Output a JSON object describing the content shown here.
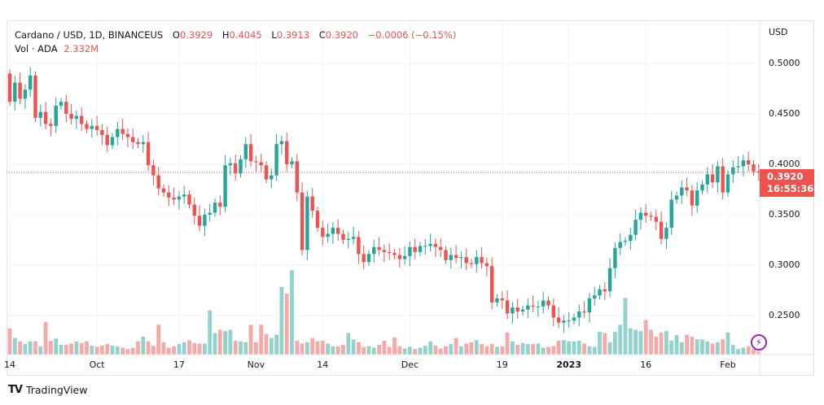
{
  "legend": {
    "symbol": "Cardano / USD, 1D, BINANCEUS",
    "o_label": "O",
    "o": "0.3929",
    "h_label": "H",
    "h": "0.4045",
    "l_label": "L",
    "l": "0.3913",
    "c_label": "C",
    "c": "0.3920",
    "change": "−0.0006 (−0.15%)",
    "vol_label": "Vol · ADA",
    "vol": "2.332M"
  },
  "price_label": {
    "price": "0.3920",
    "countdown": "16:55:36"
  },
  "footer": {
    "brand": "TradingView"
  },
  "colors": {
    "up": "#26a69a",
    "down": "#ef5350",
    "up_vol": "#92d2cc",
    "down_vol": "#f7a9a7",
    "grid": "#f0f3fa"
  },
  "chart_data": {
    "type": "candlestick",
    "title": "Cardano / USD, 1D, BINANCEUS",
    "currency_label": "USD",
    "ylim": [
      0.215,
      0.525
    ],
    "y_ticks": [
      "0.5000",
      "0.4500",
      "0.4000",
      "0.3500",
      "0.3000",
      "0.2500"
    ],
    "y_tick_values": [
      0.5,
      0.45,
      0.4,
      0.35,
      0.3,
      0.25
    ],
    "x_ticks": [
      {
        "label": "14",
        "index": 0
      },
      {
        "label": "Oct",
        "index": 17
      },
      {
        "label": "17",
        "index": 33
      },
      {
        "label": "Nov",
        "index": 48
      },
      {
        "label": "14",
        "index": 61
      },
      {
        "label": "Dec",
        "index": 78
      },
      {
        "label": "19",
        "index": 96
      },
      {
        "label": "2023",
        "index": 109
      },
      {
        "label": "16",
        "index": 124
      },
      {
        "label": "Feb",
        "index": 140
      }
    ],
    "first_open": 0.49,
    "close": [
      0.462,
      0.481,
      0.465,
      0.474,
      0.488,
      0.446,
      0.452,
      0.44,
      0.438,
      0.458,
      0.462,
      0.45,
      0.445,
      0.448,
      0.44,
      0.435,
      0.438,
      0.434,
      0.429,
      0.419,
      0.427,
      0.435,
      0.43,
      0.427,
      0.422,
      0.42,
      0.422,
      0.399,
      0.389,
      0.376,
      0.372,
      0.367,
      0.365,
      0.368,
      0.37,
      0.36,
      0.349,
      0.339,
      0.35,
      0.352,
      0.362,
      0.358,
      0.399,
      0.401,
      0.391,
      0.405,
      0.42,
      0.403,
      0.402,
      0.399,
      0.385,
      0.389,
      0.42,
      0.423,
      0.4,
      0.403,
      0.372,
      0.315,
      0.368,
      0.354,
      0.337,
      0.328,
      0.331,
      0.337,
      0.331,
      0.325,
      0.326,
      0.328,
      0.311,
      0.303,
      0.311,
      0.318,
      0.315,
      0.313,
      0.312,
      0.31,
      0.306,
      0.309,
      0.318,
      0.313,
      0.319,
      0.319,
      0.321,
      0.318,
      0.315,
      0.305,
      0.31,
      0.307,
      0.308,
      0.302,
      0.301,
      0.308,
      0.302,
      0.299,
      0.263,
      0.267,
      0.265,
      0.252,
      0.258,
      0.254,
      0.256,
      0.26,
      0.259,
      0.259,
      0.265,
      0.26,
      0.248,
      0.243,
      0.245,
      0.245,
      0.248,
      0.254,
      0.253,
      0.267,
      0.27,
      0.276,
      0.274,
      0.297,
      0.317,
      0.323,
      0.324,
      0.33,
      0.345,
      0.352,
      0.349,
      0.348,
      0.343,
      0.326,
      0.337,
      0.365,
      0.369,
      0.377,
      0.374,
      0.359,
      0.374,
      0.38,
      0.39,
      0.382,
      0.398,
      0.372,
      0.39,
      0.397,
      0.398,
      0.404,
      0.4,
      0.3929,
      0.392
    ],
    "volume_millions": [
      19,
      12,
      9.6,
      7.6,
      9.6,
      9.6,
      6,
      23.6,
      10,
      11.6,
      7,
      7,
      8,
      9.6,
      8.4,
      9.6,
      6.4,
      5.6,
      6.4,
      7.6,
      6.4,
      6,
      5,
      4,
      5,
      9.6,
      13,
      9.6,
      6.4,
      21.6,
      9,
      5,
      6,
      7.6,
      9,
      10.4,
      8.4,
      8,
      8,
      32,
      15.6,
      18,
      17,
      18,
      10,
      9.6,
      9,
      21.6,
      9,
      21.6,
      15,
      12,
      14.4,
      49,
      44,
      61,
      10,
      8,
      9,
      12,
      9.6,
      10,
      8,
      6,
      6,
      7,
      15.6,
      11,
      9,
      5.6,
      6,
      5,
      7,
      10,
      5.6,
      12.4,
      6,
      4.4,
      5.6,
      4,
      5,
      6.4,
      9.6,
      6.4,
      4.4,
      6,
      7.6,
      12,
      6,
      8,
      9,
      10.4,
      7.6,
      6,
      7.6,
      5.6,
      6,
      16,
      9.6,
      7,
      8.4,
      7.6,
      7.6,
      8,
      5,
      5.6,
      6,
      10,
      10.4,
      9.6,
      9.6,
      10,
      8,
      6,
      5.6,
      16.4,
      15.6,
      9,
      16.4,
      21.6,
      41,
      19,
      18,
      17,
      25,
      18,
      13,
      16,
      17,
      10,
      14,
      9,
      14.4,
      13,
      11,
      11,
      9.6,
      8,
      9,
      11,
      16,
      7,
      4,
      5,
      6,
      4,
      2.332
    ],
    "last_price": 0.392
  }
}
